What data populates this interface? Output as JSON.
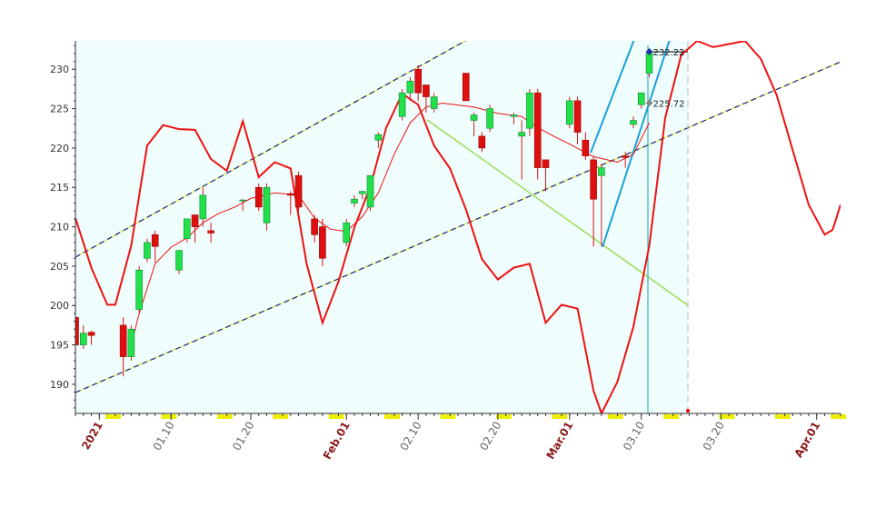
{
  "chart_data": {
    "type": "candlestick",
    "x": [
      "2020-12-29",
      "2020-12-30",
      "2020-12-31",
      "2021-01-04",
      "2021-01-05",
      "2021-01-06",
      "2021-01-07",
      "2021-01-08",
      "2021-01-11",
      "2021-01-12",
      "2021-01-13",
      "2021-01-14",
      "2021-01-15",
      "2021-01-19",
      "2021-01-21",
      "2021-01-22",
      "2021-01-25",
      "2021-01-26",
      "2021-01-28",
      "2021-01-29",
      "2021-02-01",
      "2021-02-02",
      "2021-02-03",
      "2021-02-04",
      "2021-02-05",
      "2021-02-08",
      "2021-02-09",
      "2021-02-10",
      "2021-02-11",
      "2021-02-12",
      "2021-02-16",
      "2021-02-17",
      "2021-02-18",
      "2021-02-19",
      "2021-02-22",
      "2021-02-23",
      "2021-02-24",
      "2021-02-25",
      "2021-02-26",
      "2021-03-01",
      "2021-03-02",
      "2021-03-03",
      "2021-03-04",
      "2021-03-05",
      "2021-03-08",
      "2021-03-09",
      "2021-03-10",
      "2021-03-11"
    ],
    "open": [
      198.5,
      195,
      196.6,
      197.5,
      193.5,
      199.5,
      206,
      209,
      204.5,
      208.5,
      211.5,
      211,
      209.5,
      213.3,
      215,
      210.5,
      214.2,
      216.5,
      211,
      210,
      208,
      213,
      214.2,
      212.5,
      221,
      224,
      227,
      230,
      228,
      225,
      229.5,
      223.5,
      221.5,
      222.5,
      224,
      221.5,
      222.5,
      227,
      218.5,
      223,
      226,
      221,
      218.5,
      216.5,
      219,
      223,
      225.5,
      229.5
    ],
    "high": [
      199,
      197.5,
      196.8,
      198.5,
      197.5,
      205,
      208.5,
      209.5,
      207,
      211,
      211.5,
      215,
      210.5,
      213.5,
      215.5,
      215.5,
      214.5,
      217,
      211.5,
      211,
      211,
      214,
      214.5,
      216.5,
      222,
      227.5,
      229,
      230.5,
      228,
      227,
      229.5,
      224.5,
      222,
      225.5,
      224.5,
      223.5,
      227.5,
      227.5,
      218.5,
      226.5,
      226.5,
      222,
      219,
      218,
      219.5,
      224,
      227,
      232.5
    ],
    "low": [
      194,
      194.5,
      195,
      191,
      193,
      199,
      205.5,
      205.5,
      204,
      208,
      208,
      210,
      208,
      212,
      212,
      209.5,
      211.5,
      212,
      208,
      205,
      207.5,
      212.5,
      213.5,
      212,
      220,
      223.5,
      226,
      226,
      224.5,
      224.5,
      226,
      221.5,
      219.5,
      222,
      223,
      216,
      221.5,
      216,
      214.5,
      222.5,
      220.5,
      218.5,
      207.5,
      207.5,
      217.5,
      222.5,
      225,
      229
    ],
    "close": [
      195,
      196.5,
      196.2,
      193.5,
      197,
      204.5,
      208,
      207.5,
      207,
      211,
      210,
      214,
      209.2,
      213.4,
      212.5,
      215,
      214,
      212.5,
      209,
      206,
      210.5,
      213.5,
      214.5,
      216.5,
      221.7,
      227,
      228.5,
      227,
      226.5,
      226.5,
      226,
      224.2,
      220,
      225,
      224.2,
      222,
      227,
      217.5,
      217.5,
      226,
      222,
      219,
      213.5,
      217.5,
      218.8,
      223.5,
      227,
      232
    ],
    "up_color": "#22e04a",
    "down_color": "#dd0f0f",
    "overlays": [
      {
        "color": "#ee1111",
        "width": 2,
        "x": [
          "2020-12-29",
          "2020-12-31",
          "2021-01-02",
          "2021-01-03",
          "2021-01-05",
          "2021-01-07",
          "2021-01-09",
          "2021-01-11",
          "2021-01-13",
          "2021-01-15",
          "2021-01-17",
          "2021-01-19",
          "2021-01-21",
          "2021-01-23",
          "2021-01-25",
          "2021-01-27",
          "2021-01-29",
          "2021-01-31",
          "2021-02-02",
          "2021-02-04",
          "2021-02-06",
          "2021-02-08",
          "2021-02-10",
          "2021-02-12",
          "2021-02-14",
          "2021-02-16",
          "2021-02-18",
          "2021-02-20",
          "2021-02-22",
          "2021-02-24",
          "2021-02-26",
          "2021-02-28",
          "2021-03-02",
          "2021-03-04",
          "2021-03-05",
          "2021-03-07",
          "2021-03-09",
          "2021-03-11",
          "2021-03-13",
          "2021-03-15",
          "2021-03-17",
          "2021-03-19",
          "2021-03-21",
          "2021-03-23",
          "2021-03-25",
          "2021-03-27",
          "2021-03-29",
          "2021-03-31",
          "2021-04-02",
          "2021-04-03",
          "2021-04-04"
        ],
        "values": [
          211.1,
          204.8,
          200.1,
          200.1,
          207.6,
          220.3,
          222.9,
          222.4,
          222.3,
          218.6,
          217.1,
          223.4,
          216.3,
          218.2,
          217.4,
          205.3,
          197.8,
          203,
          209.9,
          215.1,
          222.6,
          226.9,
          225.5,
          220.3,
          217.4,
          212.2,
          205.9,
          203.3,
          204.8,
          205.3,
          197.8,
          200.1,
          199.6,
          189.2,
          186.3,
          190.3,
          197.3,
          207.6,
          223.8,
          231.8,
          233.6,
          232.8,
          233.2,
          233.6,
          231.3,
          226.7,
          219.7,
          212.8,
          209,
          209.6,
          212.8
        ]
      },
      {
        "color": "#ee1111",
        "width": 1,
        "x": [
          "2021-01-05",
          "2021-01-06",
          "2021-01-08",
          "2021-01-10",
          "2021-01-12",
          "2021-01-14",
          "2021-01-16",
          "2021-01-18",
          "2021-01-20",
          "2021-01-23",
          "2021-01-26",
          "2021-01-28",
          "2021-01-30",
          "2021-02-01",
          "2021-02-03",
          "2021-02-05",
          "2021-02-07",
          "2021-02-09",
          "2021-02-11",
          "2021-02-13",
          "2021-02-17",
          "2021-02-20",
          "2021-02-23",
          "2021-02-25",
          "2021-02-27",
          "2021-03-01",
          "2021-03-04",
          "2021-03-07",
          "2021-03-09",
          "2021-03-11"
        ],
        "values": [
          195,
          199,
          205.3,
          207.4,
          208.6,
          210.5,
          211.7,
          212.5,
          213.6,
          214.3,
          214,
          211.1,
          209.7,
          209.4,
          211.3,
          214.3,
          219.2,
          223.2,
          225.2,
          225.7,
          225.2,
          224.4,
          224,
          222.6,
          221.5,
          220.5,
          218.9,
          218.2,
          219.2,
          223.2
        ]
      }
    ],
    "annotations": [
      {
        "x": "2021-03-11",
        "value": 232.22
      },
      {
        "x": "2021-03-11",
        "value": 225.72
      }
    ],
    "xlim": [
      "2020-12-29",
      "2021-04-04"
    ],
    "ylim": [
      186.3,
      233.6
    ],
    "yticks": [
      190,
      195,
      200,
      205,
      210,
      215,
      220,
      225,
      230
    ],
    "xticks": [
      {
        "value": "2021-01-01",
        "label": "2021"
      },
      {
        "value": "2021-01-10",
        "label": "01.10"
      },
      {
        "value": "2021-01-20",
        "label": "01.20"
      },
      {
        "value": "2021-02-01",
        "label": "Feb.01"
      },
      {
        "value": "2021-02-10",
        "label": "02.10"
      },
      {
        "value": "2021-02-20",
        "label": "02.20"
      },
      {
        "value": "2021-03-01",
        "label": "Mar.01"
      },
      {
        "value": "2021-03-10",
        "label": "03.10"
      },
      {
        "value": "2021-03-20",
        "label": "03.20"
      },
      {
        "value": "2021-04-01",
        "label": "Apr.01"
      }
    ]
  }
}
